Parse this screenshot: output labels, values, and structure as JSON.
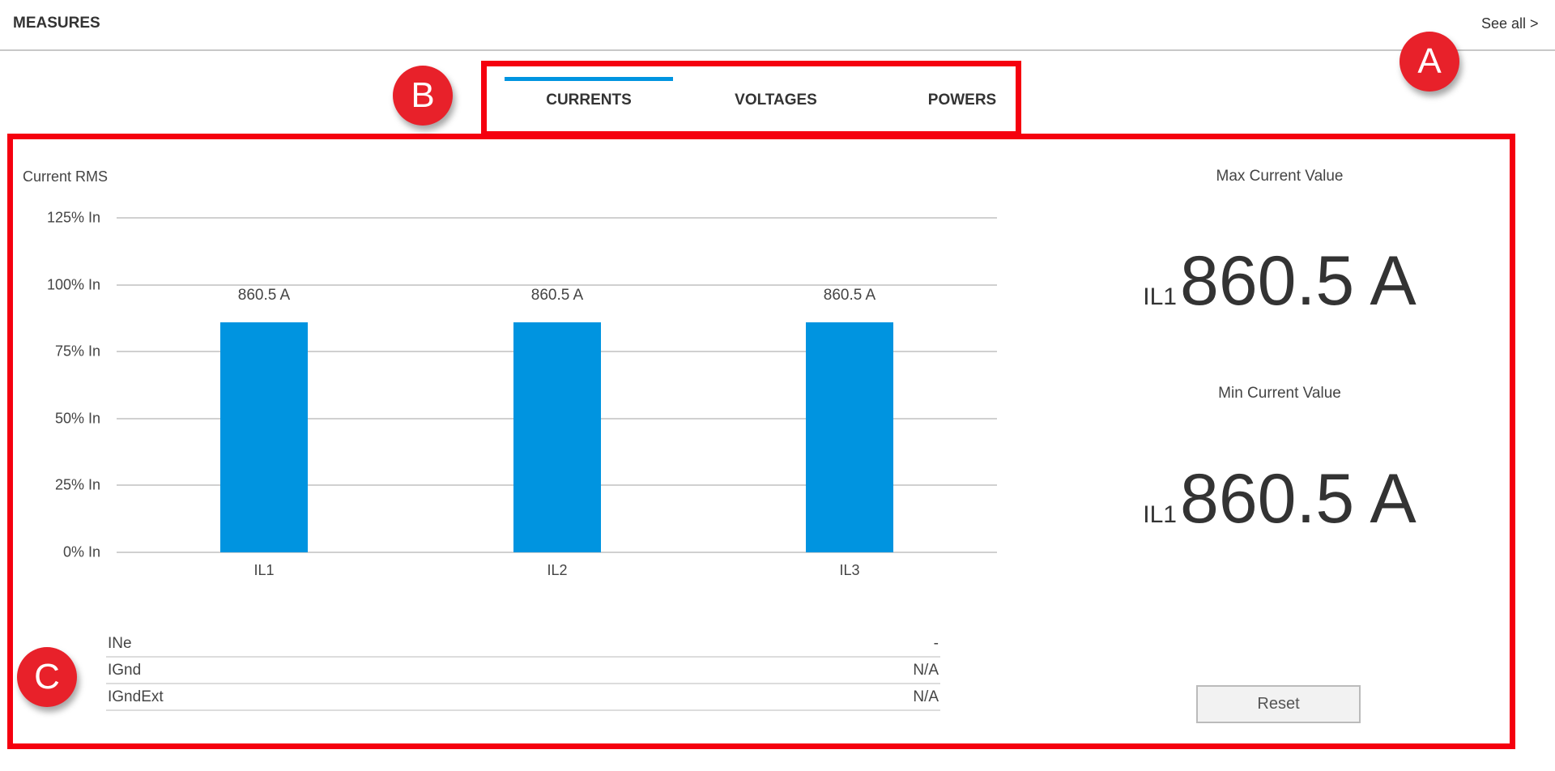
{
  "header": {
    "title": "MEASURES",
    "see_all": "See all >"
  },
  "callouts": {
    "a": "A",
    "b": "B",
    "c": "C"
  },
  "tabs": [
    {
      "label": "CURRENTS",
      "active": true
    },
    {
      "label": "VOLTAGES",
      "active": false
    },
    {
      "label": "POWERS",
      "active": false
    }
  ],
  "chart_data": {
    "type": "bar",
    "title": "Current RMS",
    "categories": [
      "IL1",
      "IL2",
      "IL3"
    ],
    "values": [
      86,
      86,
      86
    ],
    "value_unit": "% In",
    "data_labels": [
      "860.5 A",
      "860.5 A",
      "860.5 A"
    ],
    "yticks": [
      "0% In",
      "25% In",
      "50% In",
      "75% In",
      "100% In",
      "125% In"
    ],
    "ylim": [
      0,
      125
    ],
    "grid": true,
    "bar_color": "#0094e0"
  },
  "summary": {
    "max_label": "Max Current Value",
    "max_phase": "IL1",
    "max_value": "860.5 A",
    "min_label": "Min Current Value",
    "min_phase": "IL1",
    "min_value": "860.5 A",
    "reset_label": "Reset"
  },
  "extra_currents": [
    {
      "name": "INe",
      "value": "-"
    },
    {
      "name": "IGnd",
      "value": "N/A"
    },
    {
      "name": "IGndExt",
      "value": "N/A"
    }
  ],
  "colors": {
    "accent": "#0094e0",
    "highlight": "#f5000f",
    "badge": "#e8212a"
  }
}
